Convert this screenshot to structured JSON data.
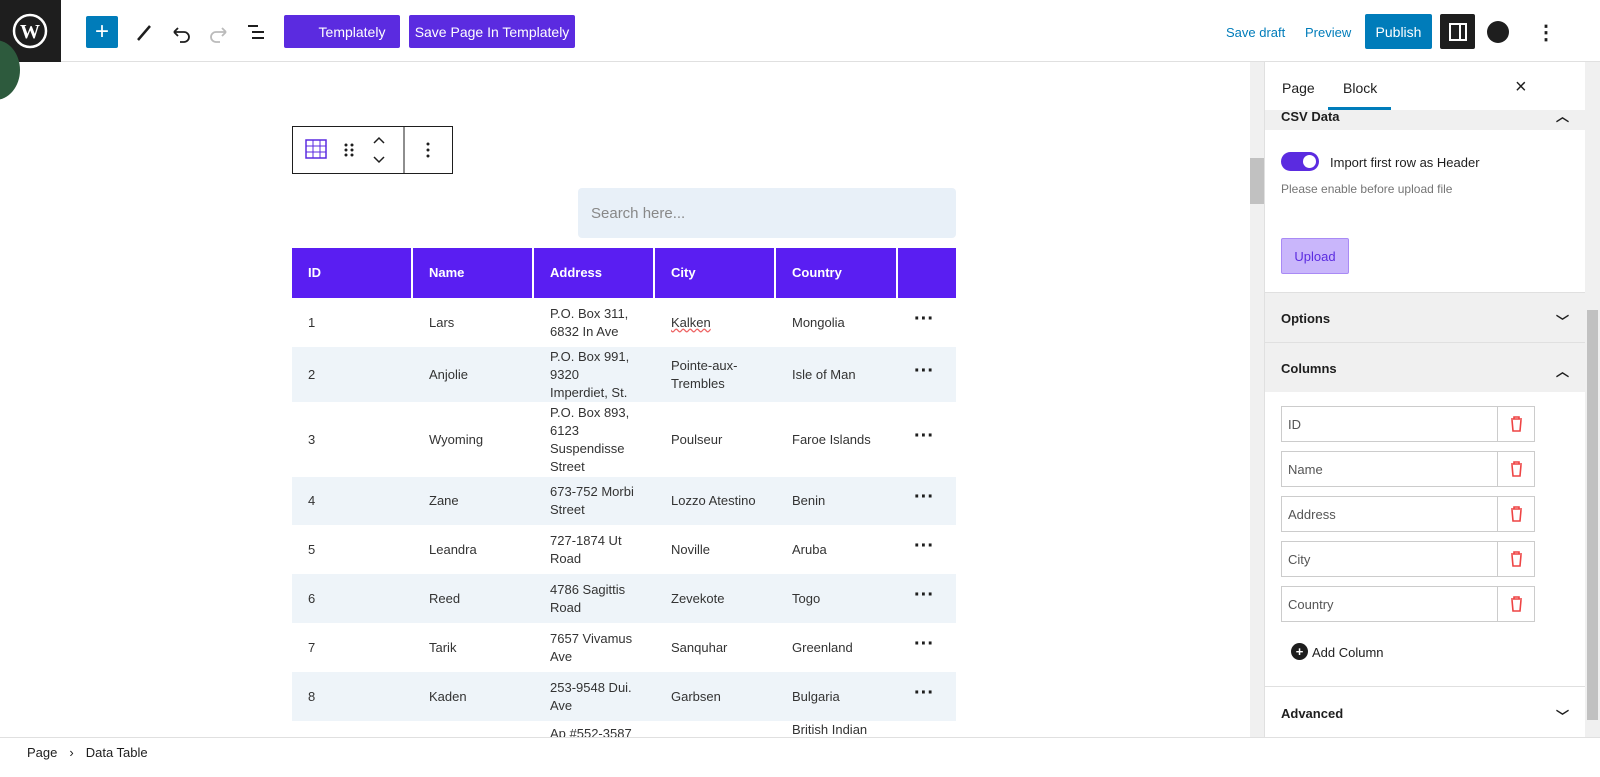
{
  "toolbar": {
    "templately": "Templately",
    "save_in_templately": "Save Page In Templately",
    "save_draft": "Save draft",
    "preview": "Preview",
    "publish": "Publish"
  },
  "search_placeholder": "Search here...",
  "table": {
    "headers": [
      "ID",
      "Name",
      "Address",
      "City",
      "Country"
    ],
    "rows": [
      [
        "1",
        "Lars",
        "P.O. Box 311, 6832 In Ave",
        "Kalken",
        "Mongolia"
      ],
      [
        "2",
        "Anjolie",
        "P.O. Box 991, 9320 Imperdiet, St.",
        "Pointe-aux-Trembles",
        "Isle of Man"
      ],
      [
        "3",
        "Wyoming",
        "P.O. Box 893, 6123 Suspendisse Street",
        "Poulseur",
        "Faroe Islands"
      ],
      [
        "4",
        "Zane",
        "673-752 Morbi Street",
        "Lozzo Atestino",
        "Benin"
      ],
      [
        "5",
        "Leandra",
        "727-1874 Ut Road",
        "Noville",
        "Aruba"
      ],
      [
        "6",
        "Reed",
        "4786 Sagittis Road",
        "Zevekote",
        "Togo"
      ],
      [
        "7",
        "Tarik",
        "7657 Vivamus Ave",
        "Sanquhar",
        "Greenland"
      ],
      [
        "8",
        "Kaden",
        "253-9548 Dui. Ave",
        "Garbsen",
        "Bulgaria"
      ]
    ],
    "partial_row": {
      "address": "Ap #552-3587",
      "country": "British Indian"
    }
  },
  "sidebar": {
    "tabs": [
      "Page",
      "Block"
    ],
    "csv_data": "CSV Data",
    "toggle_label": "Import first row as Header",
    "toggle_help": "Please enable before upload file",
    "upload": "Upload",
    "options": "Options",
    "columns": "Columns",
    "column_names": [
      "ID",
      "Name",
      "Address",
      "City",
      "Country"
    ],
    "add_column": "Add Column",
    "advanced": "Advanced"
  },
  "breadcrumb": [
    "Page",
    "Data Table"
  ]
}
